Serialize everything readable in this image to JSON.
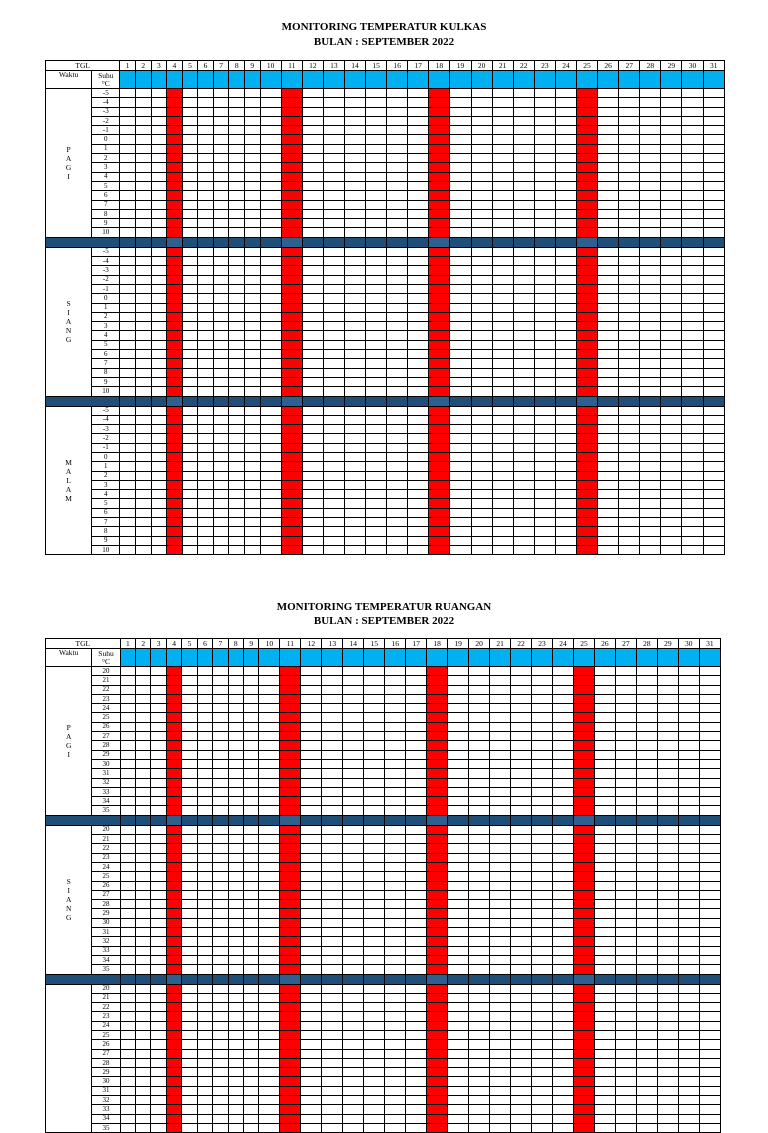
{
  "sections": [
    {
      "title": "MONITORING TEMPERATUR KULKAS",
      "subtitle": "BULAN : SEPTEMBER 2022",
      "header": {
        "tgl": "TGL",
        "waktu": "Waktu",
        "suhu": "Suhu",
        "unit": "°C"
      },
      "days": [
        "1",
        "2",
        "3",
        "4",
        "5",
        "6",
        "7",
        "8",
        "9",
        "10",
        "11",
        "12",
        "13",
        "14",
        "15",
        "16",
        "17",
        "18",
        "19",
        "20",
        "21",
        "22",
        "23",
        "24",
        "25",
        "26",
        "27",
        "28",
        "29",
        "30",
        "31"
      ],
      "highlight_days": [
        "4",
        "11",
        "18",
        "25"
      ],
      "periods": [
        {
          "letters": [
            "P",
            "A",
            "G",
            "I"
          ],
          "temps": [
            "-5",
            "-4",
            "-3",
            "-2",
            "-1",
            "0",
            "1",
            "2",
            "3",
            "4",
            "5",
            "6",
            "7",
            "8",
            "9",
            "10"
          ]
        },
        {
          "letters": [
            "S",
            "I",
            "A",
            "N",
            "G"
          ],
          "temps": [
            "-5",
            "-4",
            "-3",
            "-2",
            "-1",
            "0",
            "1",
            "2",
            "3",
            "4",
            "5",
            "6",
            "7",
            "8",
            "9",
            "10"
          ]
        },
        {
          "letters": [
            "M",
            "A",
            "L",
            "A",
            "M"
          ],
          "temps": [
            "-5",
            "-4",
            "-3",
            "-2",
            "-1",
            "0",
            "1",
            "2",
            "3",
            "4",
            "5",
            "6",
            "7",
            "8",
            "9",
            "10"
          ]
        }
      ]
    },
    {
      "title": "MONITORING TEMPERATUR RUANGAN",
      "subtitle": "BULAN : SEPTEMBER 2022",
      "header": {
        "tgl": "TGL",
        "waktu": "Waktu",
        "suhu": "Suhu",
        "unit": "°C"
      },
      "days": [
        "1",
        "2",
        "3",
        "4",
        "5",
        "6",
        "7",
        "8",
        "9",
        "10",
        "11",
        "12",
        "13",
        "14",
        "15",
        "16",
        "17",
        "18",
        "19",
        "20",
        "21",
        "22",
        "23",
        "24",
        "25",
        "26",
        "27",
        "28",
        "29",
        "30",
        "31"
      ],
      "highlight_days": [
        "4",
        "11",
        "18",
        "25"
      ],
      "periods": [
        {
          "letters": [
            "P",
            "A",
            "G",
            "I"
          ],
          "temps": [
            "20",
            "21",
            "22",
            "23",
            "24",
            "25",
            "26",
            "27",
            "28",
            "29",
            "30",
            "31",
            "32",
            "33",
            "34",
            "35"
          ]
        },
        {
          "letters": [
            "S",
            "I",
            "A",
            "N",
            "G"
          ],
          "temps": [
            "20",
            "21",
            "22",
            "23",
            "24",
            "25",
            "26",
            "27",
            "28",
            "29",
            "30",
            "31",
            "32",
            "33",
            "34",
            "35"
          ]
        },
        {
          "letters": [],
          "temps": [
            "20",
            "21",
            "22",
            "23",
            "24",
            "25",
            "26",
            "27",
            "28",
            "29",
            "30",
            "31",
            "32",
            "33",
            "34",
            "35"
          ]
        }
      ]
    }
  ],
  "colors": {
    "header_band": "#00b0f0",
    "highlight": "#ff0000",
    "separator": "#1f4e79"
  }
}
